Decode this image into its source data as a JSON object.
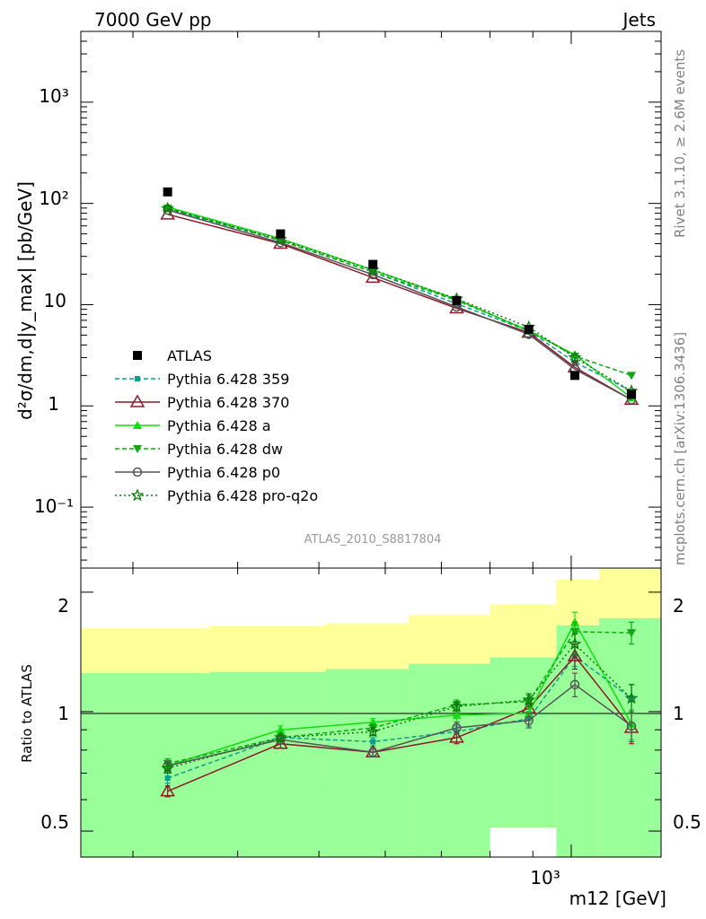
{
  "header": {
    "left_label": "7000 GeV pp",
    "right_label": "Jets",
    "analysis_id": "ATLAS_2010_S8817804",
    "side_label_top": "Rivet 3.1.10, ≥ 2.6M events",
    "side_label_bottom": "mcplots.cern.ch [arXiv:1306.3436]"
  },
  "axes": {
    "main_ylabel": "d²σ/dm,d|y_max| [pb/GeV]",
    "ratio_ylabel": "Ratio to ATLAS",
    "xlabel": "m12 [GeV]",
    "main_yticks": [
      "10⁻¹",
      "1",
      "10",
      "10²",
      "10³"
    ],
    "ratio_yticks": [
      "0.5",
      "1",
      "2"
    ],
    "x_tick_label": "10³"
  },
  "colors": {
    "data": "#000000",
    "p359": "#0aa08a",
    "p370": "#8b1a2b",
    "pa": "#11dd11",
    "pdw": "#11a811",
    "pp0": "#555555",
    "pq2o": "#0b7a0b",
    "band_outer": "#ffff99",
    "band_inner": "#99ff99"
  },
  "chart_data": {
    "type": "line",
    "x_scale": "log",
    "xlim": [
      260,
      1280
    ],
    "main": {
      "y_scale": "log",
      "ylim": [
        0.025,
        5000
      ]
    },
    "ratio": {
      "y_scale": "log",
      "ylim": [
        0.43,
        2.3
      ]
    },
    "x": [
      330,
      450,
      580,
      730,
      890,
      1010,
      1180
    ],
    "legend": [
      "ATLAS",
      "Pythia 6.428 359",
      "Pythia 6.428 370",
      "Pythia 6.428 a",
      "Pythia 6.428 dw",
      "Pythia 6.428 p0",
      "Pythia 6.428 pro-q2o"
    ],
    "data": {
      "name": "ATLAS",
      "values": [
        130,
        50,
        25,
        11,
        5.7,
        2.0,
        1.3
      ]
    },
    "series": [
      {
        "name": "Pythia 6.428 359",
        "values": [
          88,
          43,
          21,
          10.2,
          5.5,
          2.7,
          1.4
        ],
        "ratio": [
          0.68,
          0.86,
          0.84,
          0.89,
          0.96,
          1.38,
          1.08
        ],
        "ratio_err": [
          0.02,
          0.02,
          0.02,
          0.03,
          0.04,
          0.08,
          0.09
        ]
      },
      {
        "name": "Pythia 6.428 370",
        "values": [
          78,
          40,
          18.5,
          9.2,
          5.3,
          2.4,
          1.15
        ],
        "ratio": [
          0.63,
          0.83,
          0.79,
          0.86,
          1.02,
          1.38,
          0.91
        ],
        "ratio_err": [
          0.02,
          0.02,
          0.02,
          0.03,
          0.04,
          0.1,
          0.08
        ]
      },
      {
        "name": "Pythia 6.428 a",
        "values": [
          92,
          45,
          22,
          11.3,
          5.5,
          3.2,
          1.2
        ],
        "ratio": [
          0.73,
          0.9,
          0.94,
          0.98,
          0.99,
          1.68,
          0.93
        ],
        "ratio_err": [
          0.02,
          0.02,
          0.02,
          0.04,
          0.04,
          0.1,
          0.08
        ]
      },
      {
        "name": "Pythia 6.428 dw",
        "values": [
          90,
          43,
          21,
          11.0,
          5.6,
          3.1,
          2.0
        ],
        "ratio": [
          0.74,
          0.86,
          0.91,
          1.04,
          1.06,
          1.59,
          1.58
        ],
        "ratio_err": [
          0.02,
          0.02,
          0.02,
          0.03,
          0.04,
          0.09,
          0.1
        ]
      },
      {
        "name": "Pythia 6.428 p0",
        "values": [
          86,
          41,
          19.8,
          9.5,
          5.1,
          2.3,
          1.15
        ],
        "ratio": [
          0.73,
          0.85,
          0.79,
          0.91,
          0.95,
          1.17,
          0.92
        ],
        "ratio_err": [
          0.02,
          0.02,
          0.02,
          0.03,
          0.04,
          0.08,
          0.08
        ]
      },
      {
        "name": "Pythia 6.428 pro-q2o",
        "values": [
          89,
          44,
          22,
          11.4,
          6.0,
          3.0,
          1.4
        ],
        "ratio": [
          0.72,
          0.86,
          0.89,
          1.03,
          1.07,
          1.48,
          1.08
        ],
        "ratio_err": [
          0.02,
          0.02,
          0.02,
          0.03,
          0.04,
          0.09,
          0.09
        ]
      }
    ],
    "uncertainty_bands": {
      "bin_edges": [
        260,
        370,
        510,
        640,
        800,
        960,
        1080,
        1280
      ],
      "outer_upper": [
        1.62,
        1.64,
        1.67,
        1.75,
        1.86,
        2.15,
        2.35
      ],
      "outer_lower": [
        0.71,
        0.69,
        0.67,
        0.6,
        0.51,
        0.41,
        0.41
      ],
      "inner_upper": [
        1.25,
        1.26,
        1.28,
        1.32,
        1.37,
        1.65,
        1.72
      ],
      "inner_lower": [
        0.43,
        0.43,
        0.43,
        0.43,
        0.51,
        0.41,
        0.41
      ]
    }
  }
}
